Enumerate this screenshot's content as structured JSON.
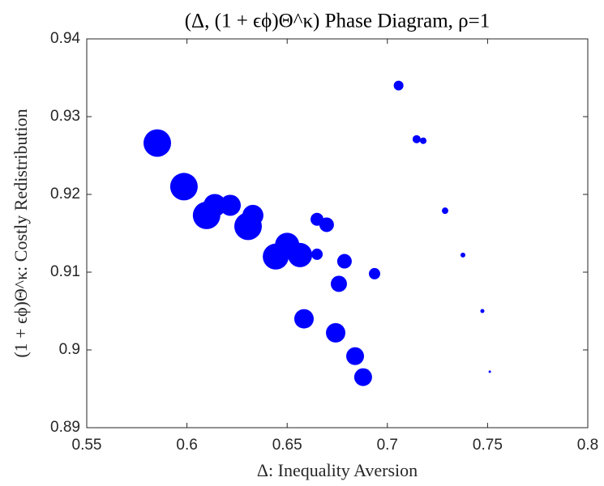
{
  "chart_data": {
    "type": "scatter",
    "title": "(Δ, (1 + ϵϕ)Θ^κ) Phase Diagram, ρ=1",
    "x_label": "Δ: Inequality Aversion",
    "y_label": "(1 + ϵϕ)Θ^κ: Costly Redistribution",
    "color": "#0000ff",
    "x": [
      0.7056,
      0.7146,
      0.7179,
      0.7288,
      0.7377,
      0.7474,
      0.7511,
      0.5852,
      0.5985,
      0.6098,
      0.6139,
      0.6216,
      0.6305,
      0.6329,
      0.6443,
      0.65,
      0.6564,
      0.6649,
      0.6697,
      0.6649,
      0.6786,
      0.6758,
      0.6936,
      0.6584,
      0.6742,
      0.6839,
      0.6879
    ],
    "values": [
      0.934,
      0.9271,
      0.9269,
      0.9179,
      0.9122,
      0.905,
      0.8972,
      0.9266,
      0.921,
      0.9173,
      0.9186,
      0.9186,
      0.9159,
      0.9173,
      0.912,
      0.9135,
      0.9122,
      0.9168,
      0.9161,
      0.9123,
      0.9114,
      0.9085,
      0.9098,
      0.904,
      0.9022,
      0.8992,
      0.8965
    ],
    "sizes": [
      6,
      5,
      4,
      4,
      3,
      2.5,
      1.5,
      17,
      17,
      17,
      14,
      13,
      17,
      13,
      16,
      15,
      15,
      8,
      9,
      7,
      9,
      10,
      7,
      12,
      12,
      11,
      11
    ],
    "xlim": [
      0.55,
      0.8
    ],
    "ylim": [
      0.89,
      0.94
    ],
    "xticks": [
      0.55,
      0.6,
      0.65,
      0.7,
      0.75,
      0.8
    ],
    "yticks": [
      0.89,
      0.9,
      0.91,
      0.92,
      0.93,
      0.94
    ],
    "grid": false
  }
}
